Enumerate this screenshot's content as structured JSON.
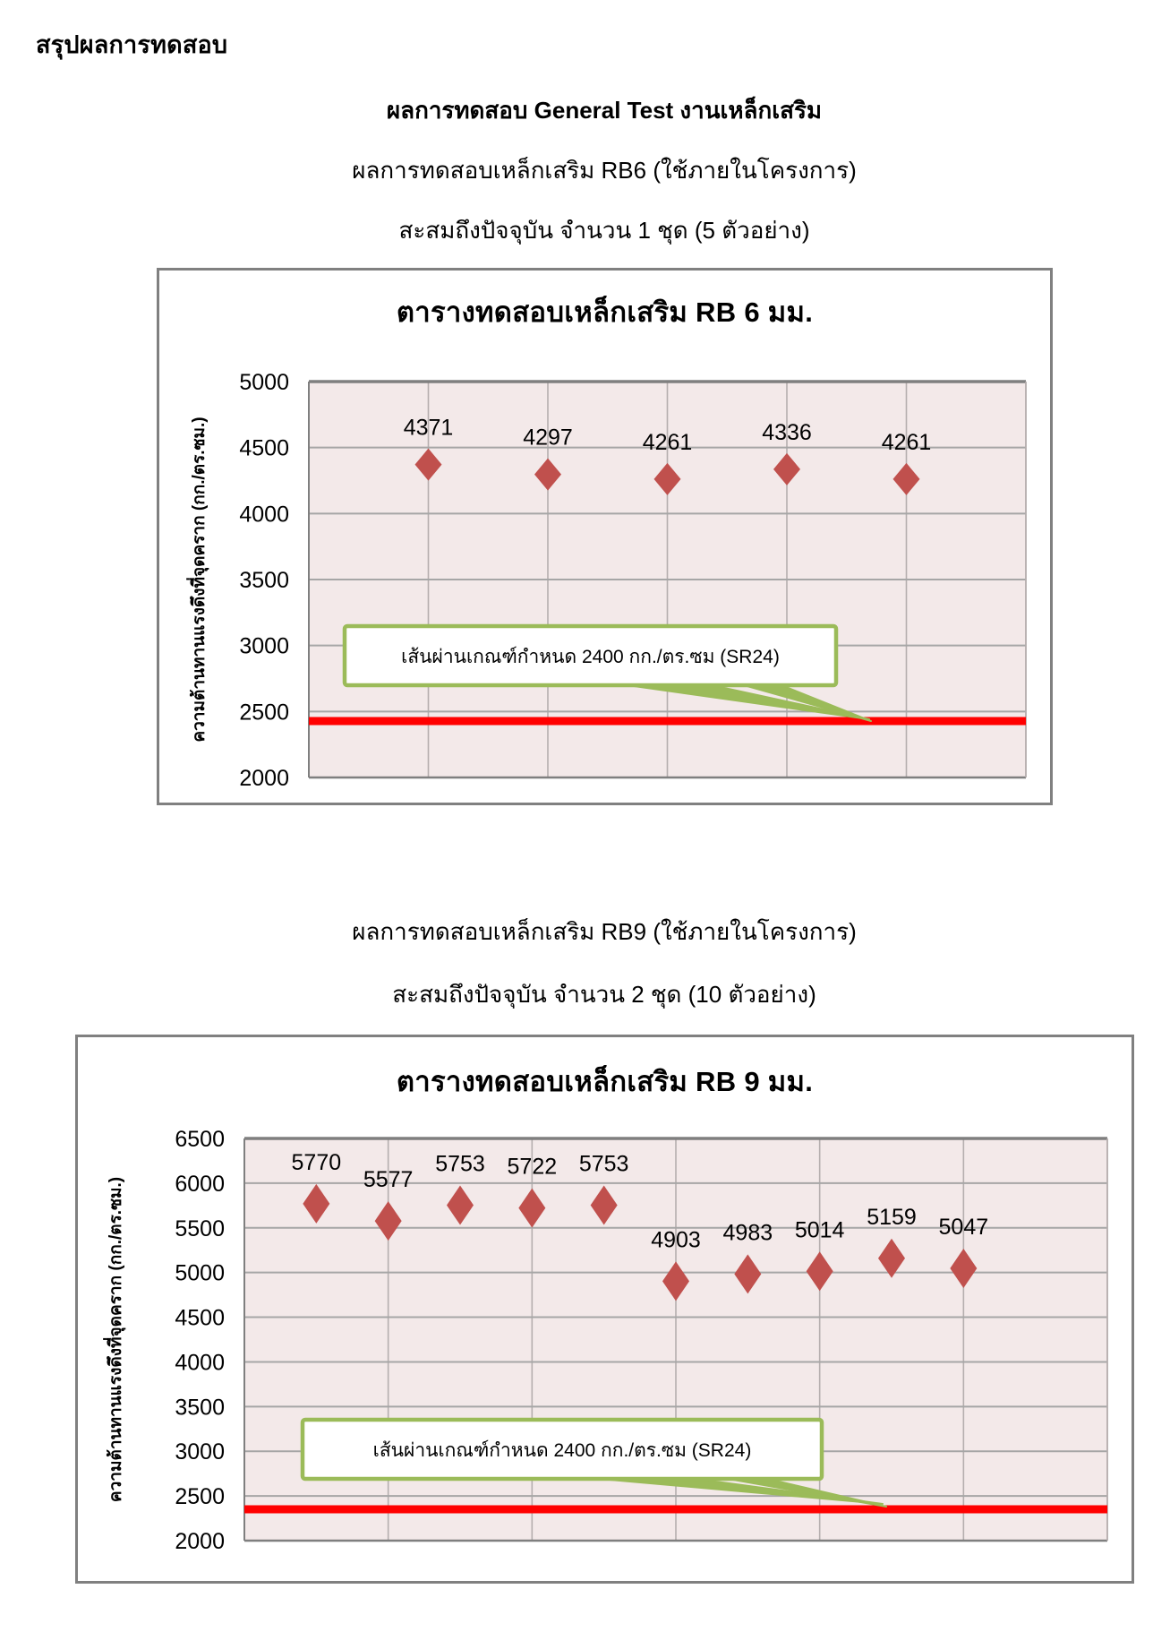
{
  "page": {
    "heading": "สรุปผลการทดสอบ",
    "main_title": "ผลการทดสอบ General Test งานเหล็กเสริม",
    "rb6_subtitle": "ผลการทดสอบเหล็กเสริม RB6 (ใช้ภายในโครงการ)",
    "rb6_accumulated": "สะสมถึงปัจจุบัน จำนวน  1 ชุด (5 ตัวอย่าง)",
    "rb9_subtitle": "ผลการทดสอบเหล็กเสริม RB9 (ใช้ภายในโครงการ)",
    "rb9_accumulated": "สะสมถึงปัจจุบัน จำนวน 2 ชุด (10 ตัวอย่าง)"
  },
  "colors": {
    "marker": "#c0504d",
    "plot_bg": "#f3e9e9",
    "grid": "#a6a6a6",
    "grid_light": "#b5aeae",
    "axis": "#7f7f7f",
    "frame": "#808080",
    "ref_line": "#ff0000",
    "callout_green": "#9bbb59",
    "text": "#000000"
  },
  "chart_data": [
    {
      "type": "scatter",
      "title": "ตารางทดสอบเหล็กเสริม RB 6 มม.",
      "ylabel": "ความต้านทานแรงดึงที่จุดคราก  (กก./ตร.ซม.)",
      "x": [
        1,
        2,
        3,
        4,
        5
      ],
      "values": [
        4371,
        4297,
        4261,
        4336,
        4261
      ],
      "ylim": [
        2000,
        5000
      ],
      "ytick_step": 500,
      "ytick_labels": [
        "5000",
        "4500",
        "4000",
        "3500",
        "3000",
        "2500",
        "2000"
      ],
      "xlim": [
        0,
        6
      ],
      "xgrid_step": 1,
      "grid": true,
      "legend": "none",
      "marker_style": "diamond",
      "ref_line": {
        "value": 2400,
        "label": "เส้นผ่านเกณฑ์กำหนด 2400 กก./ตร.ซม (SR24)"
      }
    },
    {
      "type": "scatter",
      "title": "ตารางทดสอบเหล็กเสริม RB 9 มม.",
      "ylabel": "ความต้านทานแรงดึงที่จุดคราก  (กก./ตร.ซม.)",
      "x": [
        1,
        2,
        3,
        4,
        5,
        6,
        7,
        8,
        9,
        10
      ],
      "values": [
        5770,
        5577,
        5753,
        5722,
        5753,
        4903,
        4983,
        5014,
        5159,
        5047
      ],
      "ylim": [
        2000,
        6500
      ],
      "ytick_step": 500,
      "ytick_labels": [
        "6500",
        "6000",
        "5500",
        "5000",
        "4500",
        "4000",
        "3500",
        "3000",
        "2500",
        "2000"
      ],
      "xlim": [
        0,
        12
      ],
      "xgrid_step": 2,
      "grid": true,
      "legend": "none",
      "marker_style": "diamond",
      "ref_line": {
        "value": 2400,
        "label": "เส้นผ่านเกณฑ์กำหนด 2400 กก./ตร.ซม (SR24)"
      }
    }
  ]
}
